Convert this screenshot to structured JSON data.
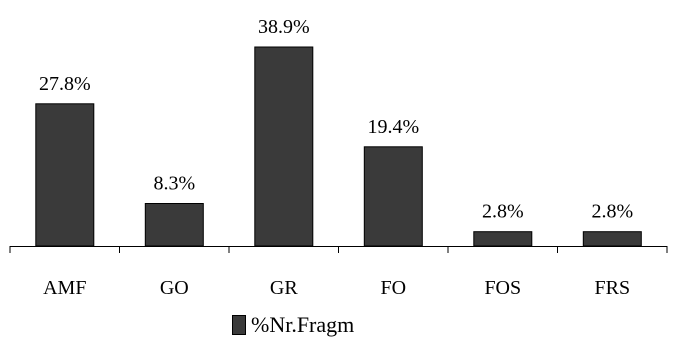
{
  "chart_data": {
    "type": "bar",
    "categories": [
      "AMF",
      "GO",
      "GR",
      "FO",
      "FOS",
      "FRS"
    ],
    "series": [
      {
        "name": "%Nr.Fragm",
        "values": [
          27.8,
          8.3,
          38.9,
          19.4,
          2.8,
          2.8
        ],
        "labels": [
          "27.8%",
          "8.3%",
          "38.9%",
          "19.4%",
          "2.8%",
          "2.8%"
        ],
        "color": "#3a3a3a"
      }
    ],
    "ylim": [
      0,
      38.9
    ],
    "grid": false,
    "legend_position": "bottom"
  }
}
